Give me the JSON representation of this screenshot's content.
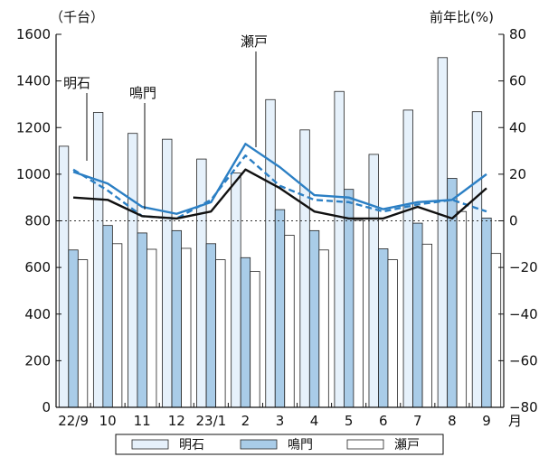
{
  "chart_data": {
    "type": "bar",
    "left_axis_unit": "（千台）",
    "right_axis_unit": "前年比(%)",
    "x_axis_suffix": "月",
    "categories": [
      "22/9",
      "10",
      "11",
      "12",
      "23/1",
      "2",
      "3",
      "4",
      "5",
      "6",
      "7",
      "8",
      "9"
    ],
    "left_ylim": [
      0,
      1600
    ],
    "left_yticks": [
      0,
      200,
      400,
      600,
      800,
      1000,
      1200,
      1400,
      1600
    ],
    "right_ylim": [
      -80,
      80
    ],
    "right_yticks": [
      -80,
      -60,
      -40,
      -20,
      0,
      20,
      40,
      60,
      80
    ],
    "bar_series": [
      {
        "name": "明石",
        "color": "#e6f1fb",
        "values": [
          1120,
          1265,
          1175,
          1150,
          1065,
          1005,
          1320,
          1190,
          1355,
          1085,
          1275,
          1500,
          1268
        ]
      },
      {
        "name": "鳴門",
        "color": "#a9cce8",
        "values": [
          675,
          780,
          748,
          758,
          702,
          642,
          848,
          758,
          935,
          680,
          790,
          982,
          812
        ]
      },
      {
        "name": "瀬戸",
        "color": "#ffffff",
        "values": [
          633,
          702,
          678,
          682,
          633,
          583,
          738,
          675,
          802,
          633,
          700,
          840,
          660
        ]
      }
    ],
    "line_series": [
      {
        "name": "明石",
        "style": "solid",
        "color": "#2b7fc4",
        "values": [
          21,
          16,
          6,
          3,
          8,
          33,
          23,
          11,
          10,
          5,
          8,
          9,
          20
        ]
      },
      {
        "name": "鳴門",
        "style": "dashed",
        "color": "#2b7fc4",
        "values": [
          22,
          13,
          2,
          1,
          9,
          28,
          15,
          9,
          8,
          4,
          7,
          9,
          4
        ]
      },
      {
        "name": "瀬戸",
        "style": "solid",
        "color": "#111111",
        "values": [
          10,
          9,
          2,
          1,
          4,
          22,
          14,
          4,
          1,
          1,
          6,
          1,
          14
        ]
      }
    ],
    "reference_line": {
      "right_axis_value": 0,
      "style": "dotted"
    },
    "annotations": [
      {
        "text": "明石",
        "series": "明石"
      },
      {
        "text": "鳴門",
        "series": "鳴門"
      },
      {
        "text": "瀬戸",
        "series": "瀬戸"
      }
    ],
    "legend": {
      "position": "bottom",
      "entries": [
        "明石",
        "鳴門",
        "瀬戸"
      ]
    }
  }
}
